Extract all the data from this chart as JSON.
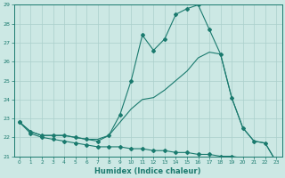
{
  "xlabel": "Humidex (Indice chaleur)",
  "background_color": "#cce8e4",
  "grid_color": "#aacfcb",
  "line_color": "#1a7a6e",
  "xlim": [
    -0.5,
    23.5
  ],
  "ylim": [
    21,
    29
  ],
  "yticks": [
    21,
    22,
    23,
    24,
    25,
    26,
    27,
    28,
    29
  ],
  "xticks": [
    0,
    1,
    2,
    3,
    4,
    5,
    6,
    7,
    8,
    9,
    10,
    11,
    12,
    13,
    14,
    15,
    16,
    17,
    18,
    19,
    20,
    21,
    22,
    23
  ],
  "curve1_x": [
    0,
    1,
    2,
    3,
    4,
    5,
    6,
    7,
    8,
    9,
    10,
    11,
    12,
    13,
    14,
    15,
    16,
    17,
    18,
    19,
    20,
    21,
    22,
    23
  ],
  "curve1_y": [
    22.8,
    22.3,
    22.1,
    22.1,
    22.1,
    22.0,
    21.9,
    21.8,
    22.1,
    23.2,
    25.0,
    27.4,
    26.6,
    27.2,
    28.5,
    28.8,
    29.0,
    27.7,
    26.4,
    24.1,
    22.5,
    21.8,
    21.7,
    20.7
  ],
  "curve2_x": [
    0,
    1,
    2,
    3,
    4,
    5,
    6,
    7,
    8,
    9,
    10,
    11,
    12,
    13,
    14,
    15,
    16,
    17,
    18,
    19,
    20,
    21,
    22,
    23
  ],
  "curve2_y": [
    22.8,
    22.3,
    22.1,
    22.1,
    22.1,
    22.0,
    21.9,
    21.9,
    22.1,
    22.8,
    23.5,
    24.0,
    24.1,
    24.5,
    25.0,
    25.5,
    26.2,
    26.5,
    26.4,
    24.1,
    22.5,
    21.8,
    21.7,
    20.7
  ],
  "curve3_x": [
    0,
    1,
    2,
    3,
    4,
    5,
    6,
    7,
    8,
    9,
    10,
    11,
    12,
    13,
    14,
    15,
    16,
    17,
    18,
    19,
    20,
    21,
    22,
    23
  ],
  "curve3_y": [
    22.8,
    22.2,
    22.0,
    21.9,
    21.8,
    21.7,
    21.6,
    21.5,
    21.5,
    21.5,
    21.4,
    21.4,
    21.3,
    21.3,
    21.2,
    21.2,
    21.1,
    21.1,
    21.0,
    21.0,
    20.9,
    20.8,
    20.8,
    20.7
  ]
}
